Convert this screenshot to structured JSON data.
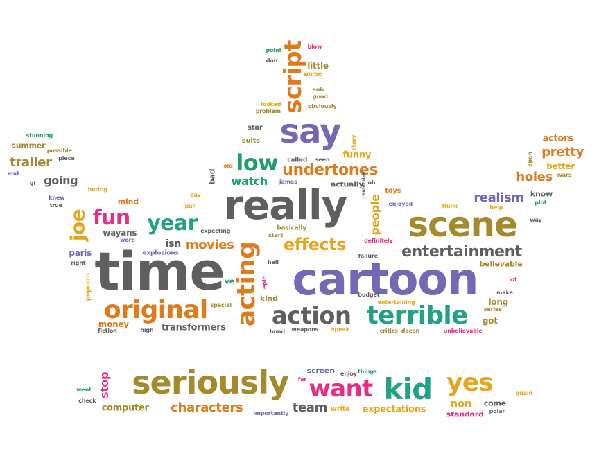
{
  "palette": {
    "gray": "#5f5f5f",
    "purple": "#7268b3",
    "orange": "#e07b1c",
    "gold": "#e8a51b",
    "olive": "#a48a2b",
    "green": "#1e9e6a",
    "teal": "#23a185",
    "magenta": "#e62e86",
    "red": "#d94d2a"
  },
  "words": [
    {
      "text": "time",
      "color": "gray"
    },
    {
      "text": "cartoon",
      "color": "purple"
    },
    {
      "text": "really",
      "color": "gray"
    },
    {
      "text": "scene",
      "color": "olive"
    },
    {
      "text": "seriously",
      "color": "olive"
    },
    {
      "text": "acting",
      "color": "orange"
    },
    {
      "text": "original",
      "color": "orange"
    },
    {
      "text": "say",
      "color": "purple"
    },
    {
      "text": "terrible",
      "color": "teal"
    },
    {
      "text": "action",
      "color": "gray"
    },
    {
      "text": "kid",
      "color": "teal"
    },
    {
      "text": "want",
      "color": "magenta"
    },
    {
      "text": "yes",
      "color": "gold"
    },
    {
      "text": "script",
      "color": "orange"
    },
    {
      "text": "fun",
      "color": "magenta"
    },
    {
      "text": "year",
      "color": "teal"
    },
    {
      "text": "effects",
      "color": "gold"
    },
    {
      "text": "entertainment",
      "color": "gray"
    },
    {
      "text": "low",
      "color": "green"
    },
    {
      "text": "undertones",
      "color": "orange"
    },
    {
      "text": "joe",
      "color": "gold"
    },
    {
      "text": "realism",
      "color": "purple"
    },
    {
      "text": "holes",
      "color": "orange"
    },
    {
      "text": "pretty",
      "color": "orange"
    },
    {
      "text": "people",
      "color": "gold"
    },
    {
      "text": "movies",
      "color": "orange"
    },
    {
      "text": "characters",
      "color": "orange"
    },
    {
      "text": "watch",
      "color": "green"
    },
    {
      "text": "trailer",
      "color": "olive"
    },
    {
      "text": "team",
      "color": "gray"
    },
    {
      "text": "going",
      "color": "gray"
    },
    {
      "text": "expectations",
      "color": "gold"
    },
    {
      "text": "funny",
      "color": "gold"
    },
    {
      "text": "non",
      "color": "gold"
    },
    {
      "text": "transformers",
      "color": "gray"
    },
    {
      "text": "computer",
      "color": "olive"
    },
    {
      "text": "stop",
      "color": "magenta"
    },
    {
      "text": "money",
      "color": "orange"
    },
    {
      "text": "wayans",
      "color": "gray"
    },
    {
      "text": "isn",
      "color": "gray"
    },
    {
      "text": "better",
      "color": "gold"
    },
    {
      "text": "actors",
      "color": "orange"
    },
    {
      "text": "entertaining",
      "color": "gold"
    },
    {
      "text": "star",
      "color": "gray"
    },
    {
      "text": "suits",
      "color": "olive"
    },
    {
      "text": "summer",
      "color": "olive"
    },
    {
      "text": "mind",
      "color": "orange"
    },
    {
      "text": "kind",
      "color": "olive"
    },
    {
      "text": "long",
      "color": "olive"
    },
    {
      "text": "got",
      "color": "olive"
    },
    {
      "text": "believable",
      "color": "olive"
    },
    {
      "text": "know",
      "color": "gray"
    },
    {
      "text": "little",
      "color": "olive"
    },
    {
      "text": "screen",
      "color": "purple"
    },
    {
      "text": "come",
      "color": "gray"
    },
    {
      "text": "standard",
      "color": "magenta"
    },
    {
      "text": "write",
      "color": "gold"
    },
    {
      "text": "paris",
      "color": "purple"
    },
    {
      "text": "explosions",
      "color": "purple"
    },
    {
      "text": "actually",
      "color": "gray"
    },
    {
      "text": "ve",
      "color": "green"
    },
    {
      "text": "toys",
      "color": "orange"
    },
    {
      "text": "basically",
      "color": "olive"
    },
    {
      "text": "budget",
      "color": "gray"
    },
    {
      "text": "special",
      "color": "olive"
    },
    {
      "text": "called",
      "color": "gray"
    },
    {
      "text": "point",
      "color": "green"
    },
    {
      "text": "blow",
      "color": "magenta"
    },
    {
      "text": "don",
      "color": "gray"
    },
    {
      "text": "worse",
      "color": "gold"
    },
    {
      "text": "sub",
      "color": "olive"
    },
    {
      "text": "good",
      "color": "olive"
    },
    {
      "text": "obviously",
      "color": "olive"
    },
    {
      "text": "looked",
      "color": "gold"
    },
    {
      "text": "problem",
      "color": "olive"
    },
    {
      "text": "story",
      "color": "gold"
    },
    {
      "text": "seen",
      "color": "gray"
    },
    {
      "text": "old",
      "color": "orange"
    },
    {
      "text": "bad",
      "color": "gray"
    },
    {
      "text": "james",
      "color": "purple"
    },
    {
      "text": "oh",
      "color": "gray"
    },
    {
      "text": "remember",
      "color": "gray"
    },
    {
      "text": "enjoyed",
      "color": "purple"
    },
    {
      "text": "think",
      "color": "gold"
    },
    {
      "text": "help",
      "color": "gold"
    },
    {
      "text": "plot",
      "color": "green"
    },
    {
      "text": "way",
      "color": "gray"
    },
    {
      "text": "wars",
      "color": "olive"
    },
    {
      "text": "open",
      "color": "olive"
    },
    {
      "text": "stunning",
      "color": "green"
    },
    {
      "text": "possible",
      "color": "olive"
    },
    {
      "text": "piece",
      "color": "gray"
    },
    {
      "text": "end",
      "color": "purple"
    },
    {
      "text": "gi",
      "color": "gray"
    },
    {
      "text": "boring",
      "color": "gold"
    },
    {
      "text": "knew",
      "color": "purple"
    },
    {
      "text": "true",
      "color": "gray"
    },
    {
      "text": "day",
      "color": "gold"
    },
    {
      "text": "par",
      "color": "gold"
    },
    {
      "text": "expecting",
      "color": "gray"
    },
    {
      "text": "wore",
      "color": "purple"
    },
    {
      "text": "start",
      "color": "olive"
    },
    {
      "text": "definitely",
      "color": "magenta"
    },
    {
      "text": "failure",
      "color": "gray"
    },
    {
      "text": "right",
      "color": "gray"
    },
    {
      "text": "popcorn",
      "color": "gold"
    },
    {
      "text": "hell",
      "color": "gray"
    },
    {
      "text": "epic",
      "color": "magenta"
    },
    {
      "text": "lot",
      "color": "magenta"
    },
    {
      "text": "make",
      "color": "gray"
    },
    {
      "text": "series",
      "color": "olive"
    },
    {
      "text": "fiction",
      "color": "gray"
    },
    {
      "text": "high",
      "color": "gray"
    },
    {
      "text": "bond",
      "color": "gray"
    },
    {
      "text": "weapons",
      "color": "gray"
    },
    {
      "text": "speak",
      "color": "gold"
    },
    {
      "text": "critics",
      "color": "olive"
    },
    {
      "text": "doesn",
      "color": "olive"
    },
    {
      "text": "unbelievable",
      "color": "magenta"
    },
    {
      "text": "went",
      "color": "green"
    },
    {
      "text": "check",
      "color": "gray"
    },
    {
      "text": "importantly",
      "color": "purple"
    },
    {
      "text": "far",
      "color": "magenta"
    },
    {
      "text": "enjoy",
      "color": "gray"
    },
    {
      "text": "things",
      "color": "green"
    },
    {
      "text": "quaid",
      "color": "gold"
    },
    {
      "text": "polar",
      "color": "gray"
    }
  ]
}
